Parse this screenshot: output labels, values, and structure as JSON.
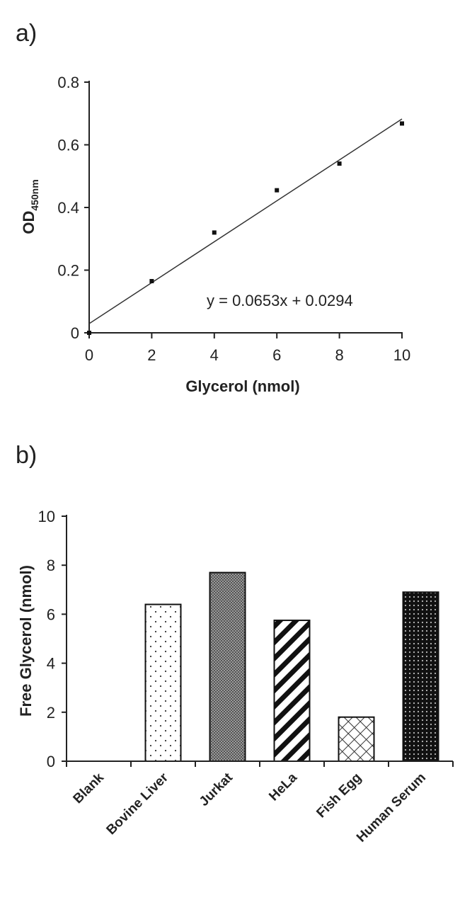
{
  "chart_data": [
    {
      "panel": "a)",
      "type": "scatter",
      "xlabel": "Glycerol (nmol)",
      "ylabel_main": "OD",
      "ylabel_sub": "450nm",
      "x": [
        0,
        2,
        4,
        6,
        8,
        10
      ],
      "y": [
        0.0,
        0.165,
        0.32,
        0.455,
        0.54,
        0.668
      ],
      "xlim": [
        0,
        10
      ],
      "ylim": [
        0,
        0.8
      ],
      "xticks": [
        "0",
        "2",
        "4",
        "6",
        "8",
        "10"
      ],
      "yticks": [
        "0",
        "0.2",
        "0.4",
        "0.6",
        "0.8"
      ],
      "fit": {
        "slope": 0.0653,
        "intercept": 0.0294
      },
      "equation": "y = 0.0653x + 0.0294",
      "grid": false,
      "legend": "none"
    },
    {
      "panel": "b)",
      "type": "bar",
      "ylabel": "Free Glycerol (nmol)",
      "categories": [
        "Blank",
        "Bovine Liver",
        "Jurkat",
        "HeLa",
        "Fish Egg",
        "Human Serum"
      ],
      "values": [
        0,
        6.4,
        7.7,
        5.75,
        1.8,
        6.9
      ],
      "patterns": [
        "none",
        "dots",
        "dense-hatch",
        "diagonal",
        "crosshatch",
        "dark-dots"
      ],
      "ylim": [
        0,
        10
      ],
      "yticks": [
        "0",
        "2",
        "4",
        "6",
        "8",
        "10"
      ],
      "grid": false,
      "legend": "none"
    }
  ]
}
